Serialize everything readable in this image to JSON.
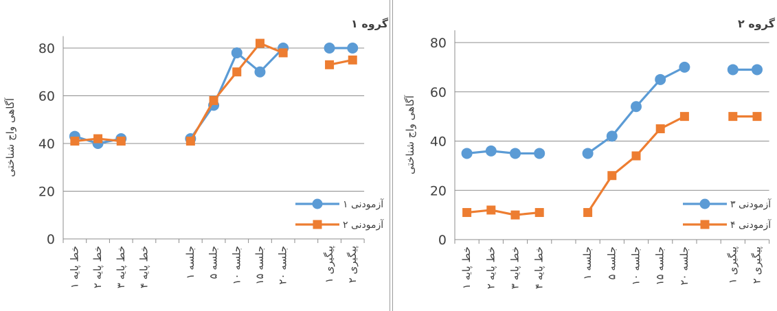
{
  "chart_data": [
    {
      "type": "line",
      "title": "گروه ۱",
      "ylabel": "آگاهی واج شناختی",
      "ylim": [
        0,
        85
      ],
      "yticks": [
        0,
        20,
        40,
        60,
        80
      ],
      "grid": "horizontal",
      "legend_placement": "bottom-right",
      "categories": [
        "خط پایه ۱",
        "خط پایه ۲",
        "خط پایه ۳",
        "خط پایه ۴",
        "",
        "جلسه ۱",
        "جلسه ۵",
        "جلسه ۱۰",
        "جلسه ۱۵",
        "جلسه ۲۰",
        "",
        "پیگیری ۱",
        "پیگیری ۲"
      ],
      "series": [
        {
          "name": "آزمودنی ۱",
          "color": "#5b9bd5",
          "marker": "circle",
          "values": [
            43,
            40,
            42,
            null,
            null,
            42,
            56,
            78,
            70,
            80,
            null,
            80,
            80
          ]
        },
        {
          "name": "آزمودنی ۲",
          "color": "#ed7d31",
          "marker": "square",
          "values": [
            41,
            42,
            41,
            null,
            null,
            41,
            58,
            70,
            82,
            78,
            null,
            73,
            75
          ]
        }
      ]
    },
    {
      "type": "line",
      "title": "گروه ۲",
      "ylabel": "آگاهی واج شناختی",
      "ylim": [
        0,
        85
      ],
      "yticks": [
        0,
        20,
        40,
        60,
        80
      ],
      "grid": "horizontal",
      "legend_placement": "bottom-right",
      "categories": [
        "خط پایه ۱",
        "خط پایه ۲",
        "خط پایه ۳",
        "خط پایه ۴",
        "",
        "جلسه ۱",
        "جلسه ۵",
        "جلسه ۱۰",
        "جلسه ۱۵",
        "جلسه ۲۰",
        "",
        "پیگیری ۱",
        "پیگیری ۲"
      ],
      "series": [
        {
          "name": "آزمودنی ۳",
          "color": "#5b9bd5",
          "marker": "circle",
          "values": [
            35,
            36,
            35,
            35,
            null,
            35,
            42,
            54,
            65,
            70,
            null,
            69,
            69
          ]
        },
        {
          "name": "آزمودنی ۴",
          "color": "#ed7d31",
          "marker": "square",
          "values": [
            11,
            12,
            10,
            11,
            null,
            11,
            26,
            34,
            45,
            50,
            null,
            50,
            50
          ]
        }
      ]
    }
  ]
}
